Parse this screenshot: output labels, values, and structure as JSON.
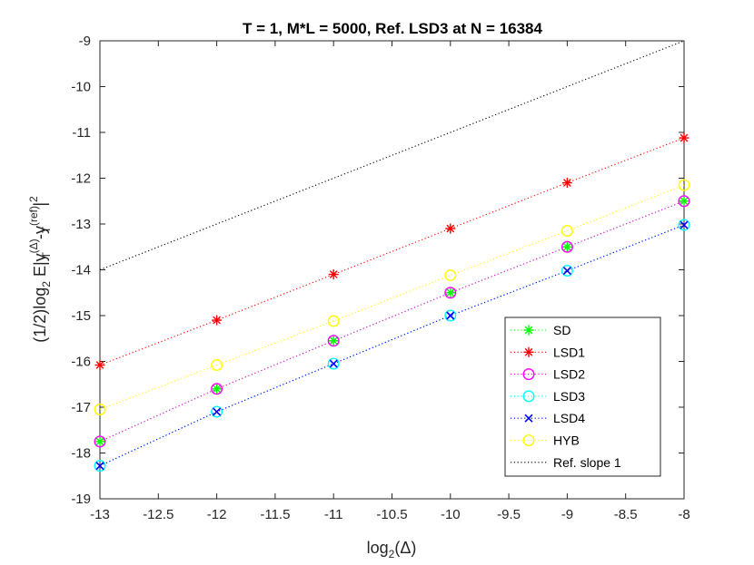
{
  "chart_data": {
    "type": "line",
    "title": "T = 1, M*L  = 5000, Ref. LSD3 at N = 16384",
    "xlabel": {
      "base": "log",
      "sub": "2",
      "rest": "(Δ)"
    },
    "ylabel": {
      "p1": "(1/2)log",
      "p1sub": "2",
      "p2": " E|y",
      "y1sup": "(Δ)",
      "y1sub": "T",
      "p3": "-y",
      "y2sup": "(ref)",
      "y2sub": "T",
      "p4": "|",
      "sq": "2"
    },
    "xlim": [
      -13,
      -8
    ],
    "ylim": [
      -19,
      -9
    ],
    "xticks": [
      "-13",
      "-12.5",
      "-12",
      "-11.5",
      "-11",
      "-10.5",
      "-10",
      "-9.5",
      "-9",
      "-8.5",
      "-8"
    ],
    "yticks": [
      "-19",
      "-18",
      "-17",
      "-16",
      "-15",
      "-14",
      "-13",
      "-12",
      "-11",
      "-10",
      "-9"
    ],
    "grid": false,
    "legend_position": "bottom-right",
    "x": [
      -13,
      -12,
      -11,
      -10,
      -9,
      -8
    ],
    "series": [
      {
        "name": "SD",
        "color": "#00ff00",
        "marker": "asterisk",
        "values": [
          -17.75,
          -16.6,
          -15.55,
          -14.5,
          -13.5,
          -12.5
        ]
      },
      {
        "name": "LSD1",
        "color": "#ff0000",
        "marker": "asterisk",
        "values": [
          -16.08,
          -15.1,
          -14.1,
          -13.1,
          -12.1,
          -11.12
        ]
      },
      {
        "name": "LSD2",
        "color": "#ff00ff",
        "marker": "circle",
        "values": [
          -17.75,
          -16.6,
          -15.55,
          -14.5,
          -13.5,
          -12.5
        ]
      },
      {
        "name": "LSD3",
        "color": "#00ffff",
        "marker": "circle",
        "values": [
          -18.28,
          -17.1,
          -16.05,
          -15.0,
          -14.02,
          -13.02
        ]
      },
      {
        "name": "LSD4",
        "color": "#0000ff",
        "marker": "x",
        "values": [
          -18.28,
          -17.1,
          -16.05,
          -15.0,
          -14.02,
          -13.02
        ]
      },
      {
        "name": "HYB",
        "color": "#ffff00",
        "marker": "circle",
        "values": [
          -17.05,
          -16.08,
          -15.12,
          -14.12,
          -13.15,
          -12.15
        ]
      },
      {
        "name": "Ref. slope 1",
        "color": "#000000",
        "marker": "none",
        "x": [
          -13,
          -8
        ],
        "values": [
          -14,
          -9
        ]
      }
    ]
  }
}
